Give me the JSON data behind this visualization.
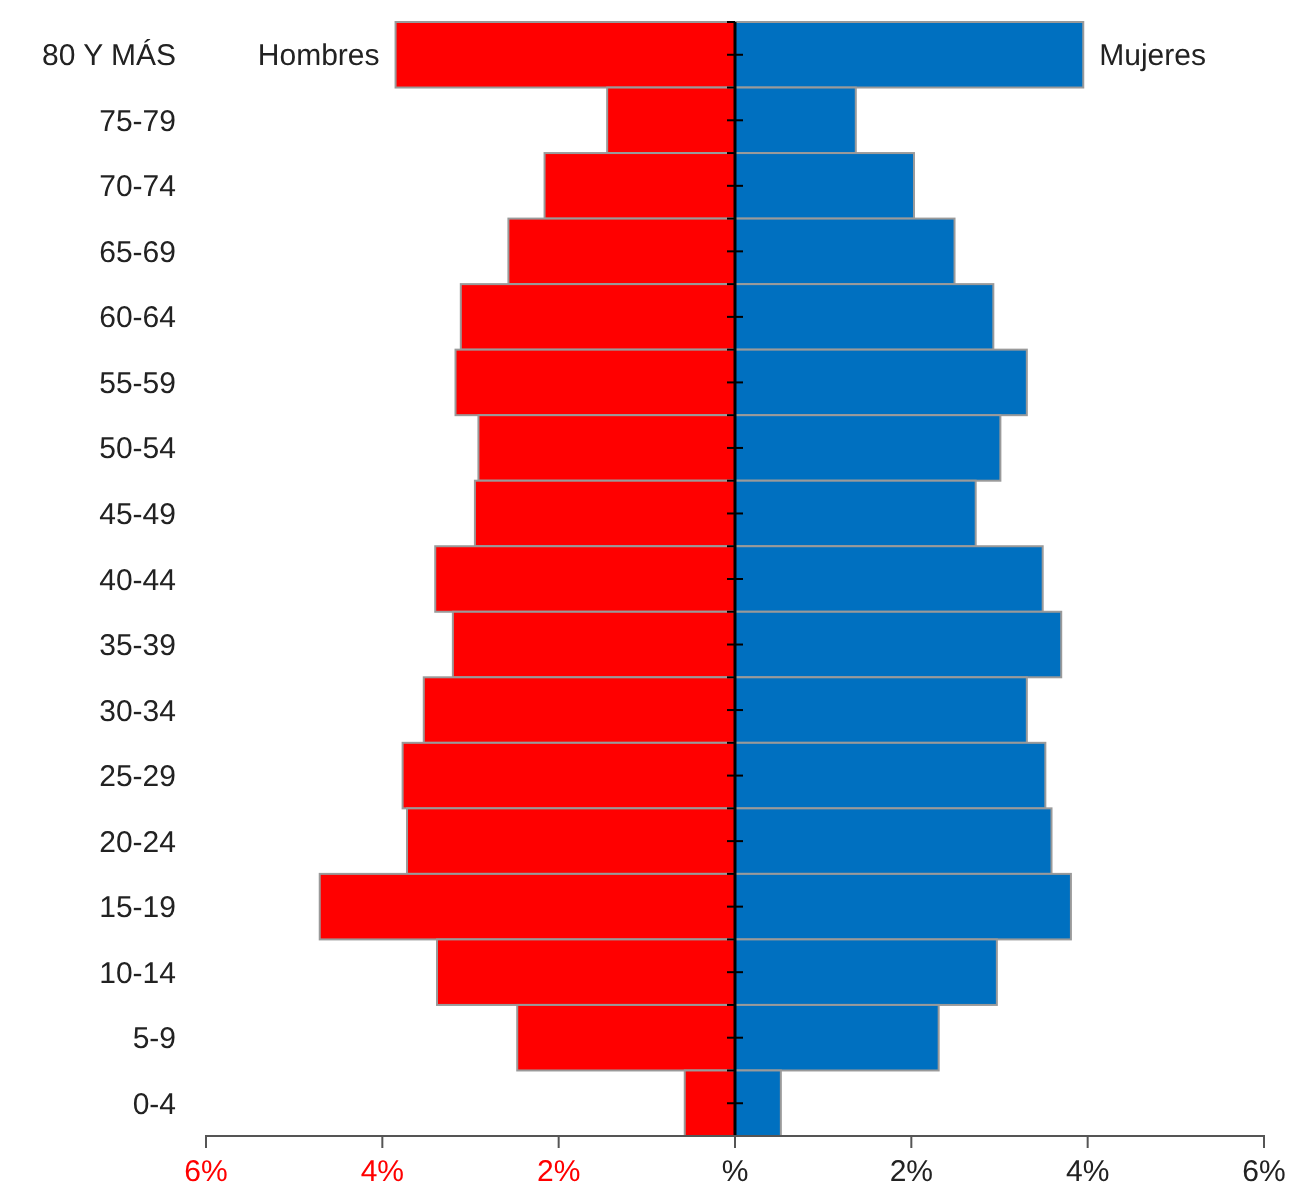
{
  "chart_data": {
    "type": "bar",
    "orientation": "horizontal",
    "stacked": true,
    "categories": [
      "80 Y MÁS",
      "75-79",
      "70-74",
      "65-69",
      "60-64",
      "55-59",
      "50-54",
      "45-49",
      "40-44",
      "35-39",
      "30-34",
      "25-29",
      "20-24",
      "15-19",
      "10-14",
      "5-9",
      "0-4"
    ],
    "series": [
      {
        "name": "Hombres",
        "color": "#ff0000",
        "values": [
          -3.85,
          -1.45,
          -2.16,
          -2.57,
          -3.11,
          -3.17,
          -2.91,
          -2.95,
          -3.4,
          -3.2,
          -3.53,
          -3.77,
          -3.72,
          -4.71,
          -3.38,
          -2.47,
          -0.57
        ]
      },
      {
        "name": "Mujeres",
        "color": "#0070c0",
        "values": [
          3.95,
          1.37,
          2.03,
          2.49,
          2.93,
          3.31,
          3.01,
          2.73,
          3.49,
          3.7,
          3.31,
          3.52,
          3.59,
          3.81,
          2.97,
          2.31,
          0.52
        ]
      }
    ],
    "xlim": [
      -6,
      6
    ],
    "xticks": [
      {
        "value": -6,
        "label": "6%"
      },
      {
        "value": -4,
        "label": "4%"
      },
      {
        "value": -2,
        "label": "2%"
      },
      {
        "value": 0,
        "label": "%"
      },
      {
        "value": 2,
        "label": "2%"
      },
      {
        "value": 4,
        "label": "4%"
      },
      {
        "value": 6,
        "label": "6%"
      }
    ]
  }
}
